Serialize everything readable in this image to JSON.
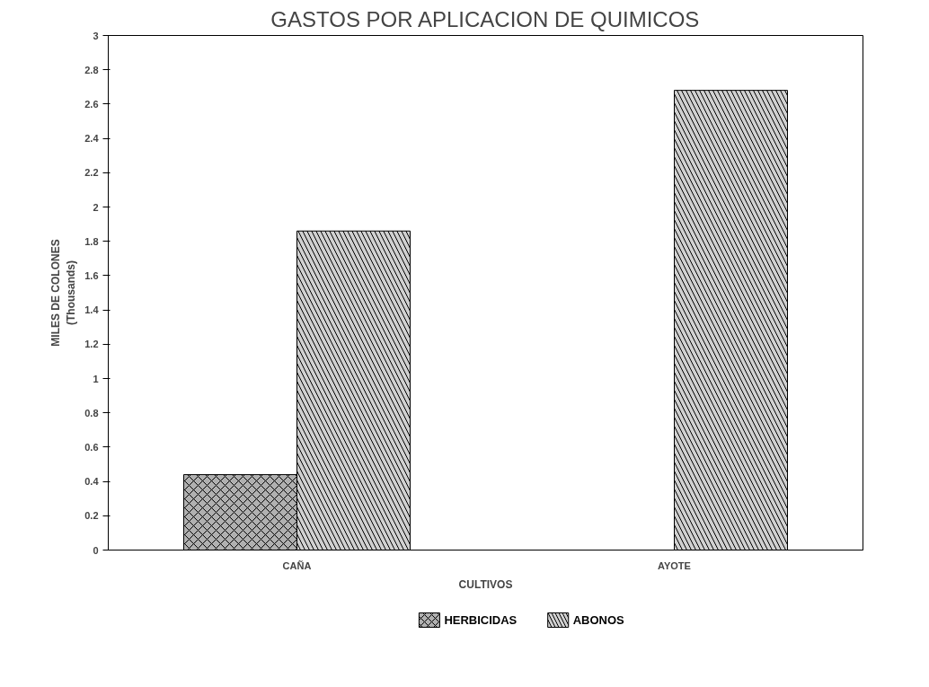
{
  "chart_data": {
    "type": "bar",
    "title": "GASTOS POR APLICACION DE QUIMICOS",
    "xlabel": "CULTIVOS",
    "ylabel": "MILES DE COLONES\n(Thousands)",
    "categories": [
      "CAÑA",
      "AYOTE"
    ],
    "series": [
      {
        "name": "HERBICIDAS",
        "color": "#b0b0b0",
        "values": [
          0.44,
          null
        ]
      },
      {
        "name": "ABONOS",
        "color": "#d0d0d0",
        "values": [
          1.86,
          2.68
        ]
      }
    ],
    "ylim": [
      0,
      3
    ],
    "yticks": [
      0,
      0.2,
      0.4,
      0.6,
      0.8,
      1,
      1.2,
      1.4,
      1.6,
      1.8,
      2,
      2.2,
      2.4,
      2.6,
      2.8,
      3
    ],
    "grid": false,
    "legend": "bottom"
  }
}
